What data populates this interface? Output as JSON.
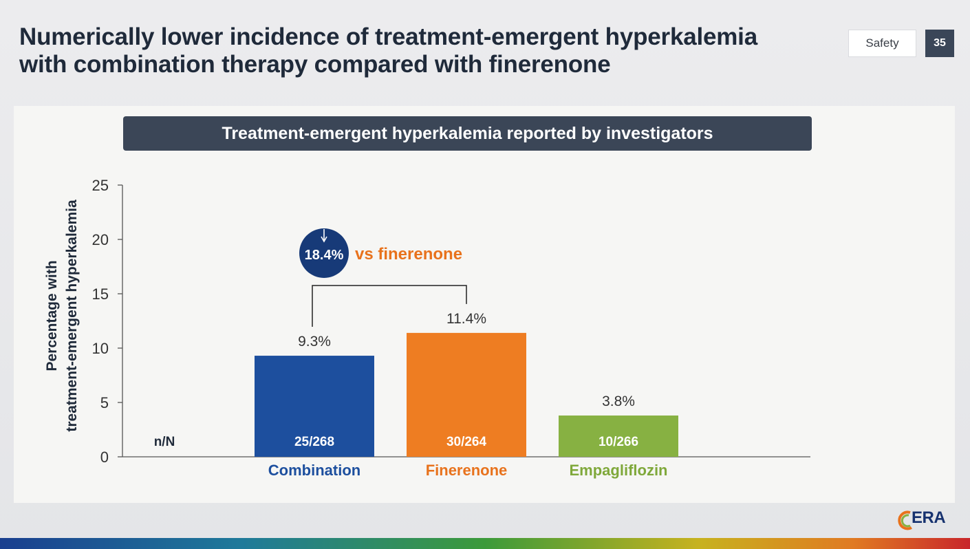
{
  "slide": {
    "title_line1": "Numerically lower incidence of treatment-emergent hyperkalemia",
    "title_line2": "with combination therapy compared with finerenone",
    "section_tag": "Safety",
    "page_number": "35",
    "logo_text": "ERA"
  },
  "chart_data": {
    "type": "bar",
    "title": "Treatment-emergent hyperkalemia reported by investigators",
    "xlabel": "",
    "ylabel_line1": "Percentage with",
    "ylabel_line2": "treatment-emergent hyperkalemia",
    "ylim": [
      0,
      25
    ],
    "yticks": [
      0,
      5,
      10,
      15,
      20,
      25
    ],
    "grid": false,
    "categories": [
      "Combination",
      "Finerenone",
      "Empagliflozin"
    ],
    "values": [
      9.3,
      11.4,
      3.8
    ],
    "value_labels": [
      "9.3%",
      "11.4%",
      "3.8%"
    ],
    "counts": [
      "25/268",
      "30/264",
      "10/266"
    ],
    "counts_header": "n/N",
    "colors": [
      "#1d4f9e",
      "#ee7d22",
      "#87b142"
    ],
    "label_colors": [
      "#1d4f9e",
      "#e8721c",
      "#7fa83a"
    ],
    "comparison": {
      "from": "Combination",
      "to": "Finerenone",
      "reduction": "18.4%",
      "text": "vs finerenone",
      "badge_color": "#173a78",
      "text_color": "#e8721c"
    }
  }
}
